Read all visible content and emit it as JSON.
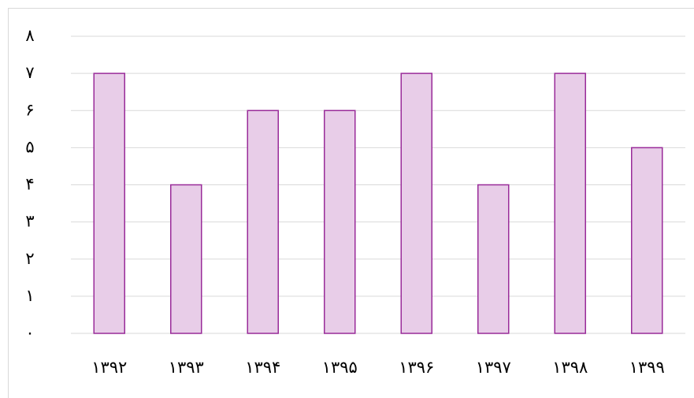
{
  "chart_data": {
    "type": "bar",
    "categories": [
      "۱۳۹۲",
      "۱۳۹۳",
      "۱۳۹۴",
      "۱۳۹۵",
      "۱۳۹۶",
      "۱۳۹۷",
      "۱۳۹۸",
      "۱۳۹۹"
    ],
    "values": [
      7,
      4,
      6,
      6,
      7,
      4,
      7,
      5
    ],
    "color": "#e8cde8",
    "edge_color": "#992b99",
    "ylim": [
      0,
      8
    ],
    "yticks": [
      {
        "value": 0,
        "label": "۰"
      },
      {
        "value": 1,
        "label": "۱"
      },
      {
        "value": 2,
        "label": "۲"
      },
      {
        "value": 3,
        "label": "۳"
      },
      {
        "value": 4,
        "label": "۴"
      },
      {
        "value": 5,
        "label": "۵"
      },
      {
        "value": 6,
        "label": "۶"
      },
      {
        "value": 7,
        "label": "۷"
      },
      {
        "value": 8,
        "label": "۸"
      }
    ],
    "grid": true
  }
}
